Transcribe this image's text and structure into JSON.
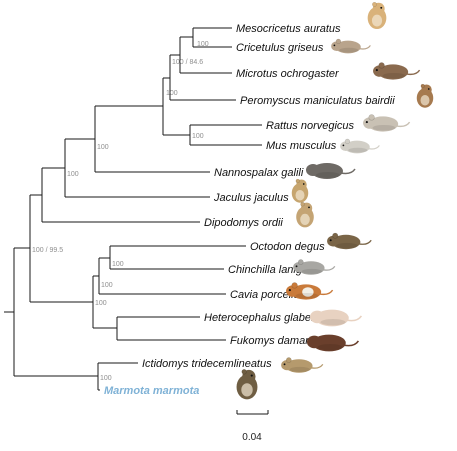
{
  "colors": {
    "branch": "#1a1a1a",
    "focal_taxon": "#7fb2d6",
    "support": "#8f8f8f",
    "text": "#111111"
  },
  "taxa": [
    {
      "name": "Mesocricetus auratus",
      "icon": "hamster-icon"
    },
    {
      "name": "Cricetulus griseus",
      "icon": "chinese-hamster-icon"
    },
    {
      "name": "Microtus ochrogaster",
      "icon": "vole-icon"
    },
    {
      "name": "Peromyscus maniculatus bairdii",
      "icon": "deer-mouse-icon"
    },
    {
      "name": "Rattus norvegicus",
      "icon": "rat-icon"
    },
    {
      "name": "Mus musculus",
      "icon": "mouse-icon"
    },
    {
      "name": "Nannospalax galili",
      "icon": "blind-mole-rat-icon"
    },
    {
      "name": "Jaculus jaculus",
      "icon": "jerboa-icon"
    },
    {
      "name": "Dipodomys ordii",
      "icon": "kangaroo-rat-icon"
    },
    {
      "name": "Octodon degus",
      "icon": "degu-icon"
    },
    {
      "name": "Chinchilla lanigera",
      "icon": "chinchilla-icon"
    },
    {
      "name": "Cavia porcellus",
      "icon": "guinea-pig-icon"
    },
    {
      "name": "Heterocephalus glaber",
      "icon": "naked-mole-rat-icon"
    },
    {
      "name": "Fukomys damarensis",
      "icon": "damaraland-mole-rat-icon"
    },
    {
      "name": "Ictidomys tridecemlineatus",
      "icon": "ground-squirrel-icon"
    },
    {
      "name": "Marmota marmota",
      "icon": "marmot-icon",
      "focal": true
    }
  ],
  "support_values": {
    "cricetulus_mesocricetus": "100",
    "cricetid_clade": "100 / 84.6",
    "rattus_mus": "100",
    "muroid_clade": "100",
    "myomorph_clade": "100",
    "mouse_related_clade": "100",
    "rodent_root": "100 / 99.5",
    "chinchilla_octodon": "100",
    "caviomorph_clade": "100",
    "hystricomorph_clade": "100",
    "sciurid_clade": "100"
  },
  "scale_bar": {
    "label": "0.04",
    "value": 0.04
  }
}
